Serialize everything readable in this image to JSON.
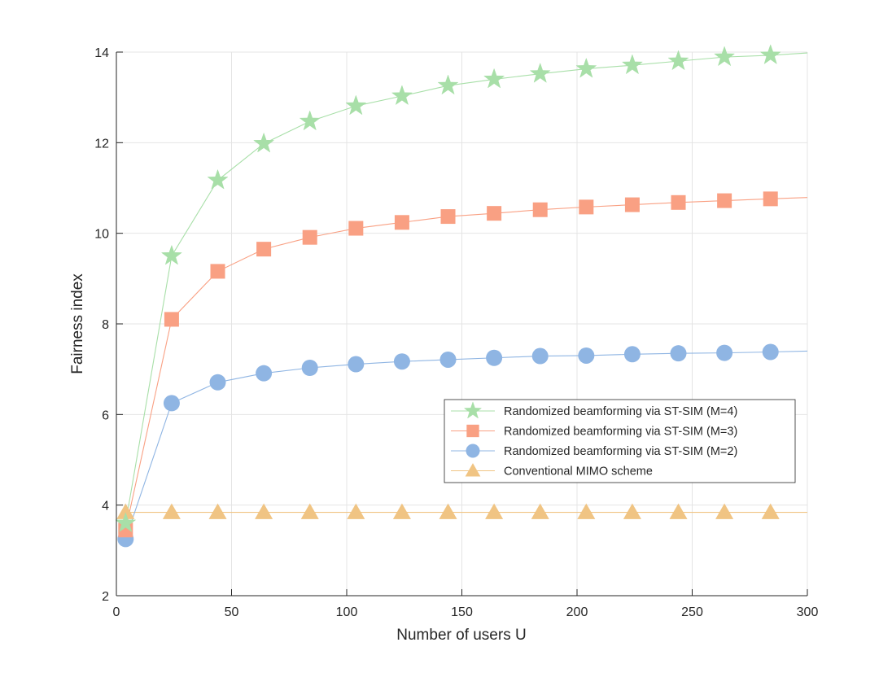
{
  "chart_data": {
    "type": "line",
    "title": "",
    "xlabel": "Number of users U",
    "ylabel": "Fairness index",
    "xlim": [
      0,
      300
    ],
    "ylim": [
      2,
      14
    ],
    "xticks": [
      0,
      50,
      100,
      150,
      200,
      250,
      300
    ],
    "yticks": [
      2,
      4,
      6,
      8,
      10,
      12,
      14
    ],
    "grid": true,
    "legend_position": "center-right",
    "x": [
      4,
      24,
      44,
      64,
      84,
      104,
      124,
      144,
      164,
      184,
      204,
      224,
      244,
      264,
      284
    ],
    "series": [
      {
        "name": "Randomized beamforming via ST-SIM (M=4)",
        "color": "#a8dfa8",
        "marker": "star",
        "line_x": [
          4,
          24,
          44,
          64,
          84,
          104,
          124,
          144,
          164,
          184,
          204,
          224,
          244,
          264,
          284,
          300
        ],
        "line_y": [
          3.6,
          9.5,
          11.17,
          11.98,
          12.47,
          12.81,
          13.03,
          13.26,
          13.4,
          13.52,
          13.63,
          13.71,
          13.8,
          13.89,
          13.93,
          13.98
        ],
        "values": [
          3.6,
          9.5,
          11.17,
          11.98,
          12.47,
          12.81,
          13.03,
          13.26,
          13.4,
          13.52,
          13.63,
          13.71,
          13.8,
          13.89,
          13.93
        ]
      },
      {
        "name": "Randomized beamforming via ST-SIM (M=3)",
        "color": "#f9a083",
        "marker": "square",
        "line_x": [
          4,
          24,
          44,
          64,
          84,
          104,
          124,
          144,
          164,
          184,
          204,
          224,
          244,
          264,
          284,
          300
        ],
        "line_y": [
          3.45,
          8.1,
          9.16,
          9.65,
          9.91,
          10.11,
          10.24,
          10.37,
          10.44,
          10.52,
          10.58,
          10.63,
          10.68,
          10.72,
          10.76,
          10.79
        ],
        "values": [
          3.45,
          8.1,
          9.16,
          9.65,
          9.91,
          10.11,
          10.24,
          10.37,
          10.44,
          10.52,
          10.58,
          10.63,
          10.68,
          10.72,
          10.76
        ]
      },
      {
        "name": "Randomized beamforming via ST-SIM (M=2)",
        "color": "#8fb5e3",
        "marker": "circle",
        "line_x": [
          4,
          24,
          44,
          64,
          84,
          104,
          124,
          144,
          164,
          184,
          204,
          224,
          244,
          264,
          284,
          300
        ],
        "line_y": [
          3.25,
          6.25,
          6.71,
          6.91,
          7.03,
          7.11,
          7.17,
          7.21,
          7.25,
          7.29,
          7.3,
          7.33,
          7.35,
          7.36,
          7.38,
          7.4
        ],
        "values": [
          3.25,
          6.25,
          6.71,
          6.91,
          7.03,
          7.11,
          7.17,
          7.21,
          7.25,
          7.29,
          7.3,
          7.33,
          7.35,
          7.36,
          7.38
        ]
      },
      {
        "name": "Conventional MIMO scheme",
        "color": "#f0c483",
        "marker": "triangle",
        "line_x": [
          4,
          24,
          44,
          64,
          84,
          104,
          124,
          144,
          164,
          184,
          204,
          224,
          244,
          264,
          284,
          300
        ],
        "line_y": [
          3.84,
          3.84,
          3.84,
          3.84,
          3.84,
          3.84,
          3.84,
          3.84,
          3.84,
          3.84,
          3.84,
          3.84,
          3.84,
          3.84,
          3.84,
          3.84
        ],
        "values": [
          3.84,
          3.84,
          3.84,
          3.84,
          3.84,
          3.84,
          3.84,
          3.84,
          3.84,
          3.84,
          3.84,
          3.84,
          3.84,
          3.84,
          3.84
        ]
      }
    ]
  }
}
